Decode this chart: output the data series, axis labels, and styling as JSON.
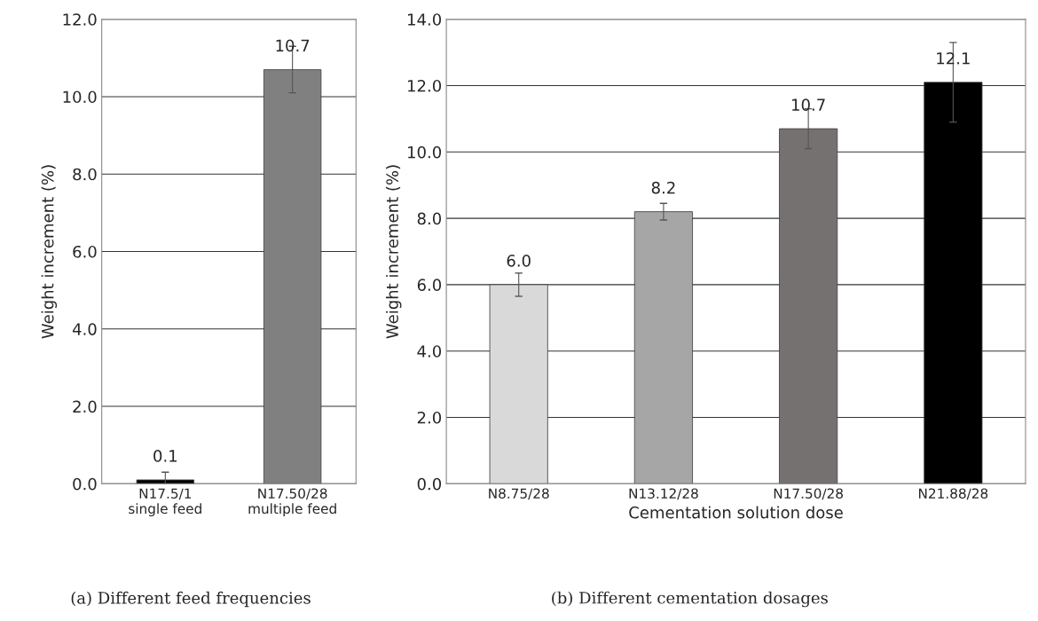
{
  "chart_data": [
    {
      "type": "bar",
      "categories": [
        "N17.5/1\nsingle feed",
        "N17.50/28\nmultiple feed"
      ],
      "values": [
        0.1,
        10.7
      ],
      "colors": [
        "#000000",
        "#808080"
      ],
      "errors": [
        0.2,
        0.6
      ],
      "value_labels": [
        "0.1",
        "10.7"
      ],
      "ylabel": "Weight increment (%)",
      "ylim": [
        0,
        12
      ],
      "yticks": [
        {
          "value": 0,
          "label": "0.0"
        },
        {
          "value": 2,
          "label": "2.0"
        },
        {
          "value": 4,
          "label": "4.0"
        },
        {
          "value": 6,
          "label": "6.0"
        },
        {
          "value": 8,
          "label": "8.0"
        },
        {
          "value": 10,
          "label": "10.0"
        },
        {
          "value": 12,
          "label": "12.0"
        }
      ],
      "grid": "y",
      "annotations": [
        "(a) Different feed frequencies"
      ]
    },
    {
      "type": "bar",
      "categories": [
        "N8.75/28",
        "N13.12/28",
        "N17.50/28",
        "N21.88/28"
      ],
      "values": [
        6.0,
        8.2,
        10.7,
        12.1
      ],
      "colors": [
        "#d9d9d9",
        "#a6a6a6",
        "#767171",
        "#000000"
      ],
      "errors": [
        0.35,
        0.25,
        0.6,
        1.2
      ],
      "value_labels": [
        "6.0",
        "8.2",
        "10.7",
        "12.1"
      ],
      "xlabel": "Cementation solution dose",
      "ylabel": "Weight increment (%)",
      "ylim": [
        0,
        14
      ],
      "yticks": [
        {
          "value": 0,
          "label": "0.0"
        },
        {
          "value": 2,
          "label": "2.0"
        },
        {
          "value": 4,
          "label": "4.0"
        },
        {
          "value": 6,
          "label": "6.0"
        },
        {
          "value": 8,
          "label": "8.0"
        },
        {
          "value": 10,
          "label": "10.0"
        },
        {
          "value": 12,
          "label": "12.0"
        },
        {
          "value": 14,
          "label": "14.0"
        }
      ],
      "grid": "y",
      "annotations": [
        "(b) Different cementation dosages"
      ]
    }
  ]
}
